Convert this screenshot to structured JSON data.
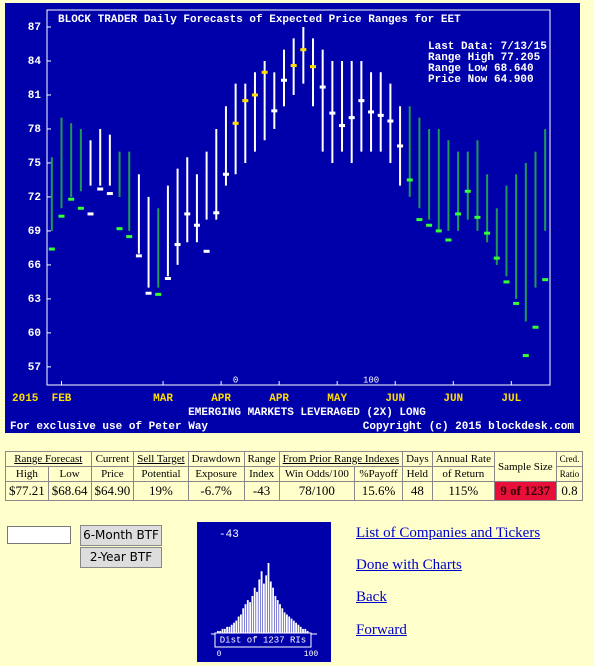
{
  "chart_data": {
    "type": "rangebar",
    "title": "BLOCK TRADER Daily Forecasts of Expected Price Ranges for  EET",
    "info": [
      "Last Data: 7/13/15",
      "Range High  77.205",
      "Range Low   68.640",
      "Price Now   64.900"
    ],
    "year": "2015",
    "subtitle": "EMERGING MARKETS LEVERAGED (2X) LONG",
    "footer_left": "For exclusive use of Peter Way",
    "footer_right": "Copyright (c) 2015 blockdesk.com",
    "axis_marks": [
      {
        "value": 19,
        "label": "0"
      },
      {
        "value": 33,
        "label": "100"
      }
    ],
    "ylim": [
      55.4,
      88.5
    ],
    "yticks": [
      57,
      60,
      63,
      66,
      69,
      72,
      75,
      78,
      81,
      84,
      87
    ],
    "xlim": [
      -0.5,
      51.5
    ],
    "xticks": [
      {
        "value": 1,
        "label": "FEB"
      },
      {
        "value": 11.5,
        "label": "MAR"
      },
      {
        "value": 17.5,
        "label": "APR"
      },
      {
        "value": 23.5,
        "label": "APR"
      },
      {
        "value": 29.5,
        "label": "MAY"
      },
      {
        "value": 35.5,
        "label": "JUN"
      },
      {
        "value": 41.5,
        "label": "JUN"
      },
      {
        "value": 47.5,
        "label": "JUL"
      }
    ],
    "high": [
      75.5,
      79,
      78.5,
      78,
      77,
      78,
      77.5,
      76,
      76,
      74,
      72,
      71,
      73,
      74.5,
      75.5,
      74,
      76,
      78,
      80,
      82,
      82,
      83,
      84,
      83,
      85,
      86,
      87,
      86,
      85,
      84,
      84,
      84,
      84,
      83,
      83,
      82,
      80,
      80,
      79,
      78,
      78,
      77,
      76,
      76,
      77,
      74,
      71,
      73,
      74,
      75,
      76,
      78
    ],
    "low": [
      69,
      71,
      72,
      72.5,
      73,
      73,
      73,
      72,
      69,
      67,
      64,
      64,
      65,
      66,
      68,
      68,
      70,
      70,
      73,
      74,
      75,
      76,
      77,
      78,
      80,
      81,
      82,
      80,
      76,
      75,
      76,
      75,
      76,
      76,
      76,
      75,
      73,
      72,
      71,
      70,
      69,
      69,
      69,
      70,
      69,
      68,
      66,
      65,
      63,
      61,
      64,
      69
    ],
    "price": [
      67.4,
      70.3,
      71.8,
      71,
      70.5,
      72.7,
      72.3,
      69.2,
      68.5,
      66.8,
      63.5,
      63.4,
      64.8,
      67.8,
      70.5,
      69.5,
      67.2,
      70.6,
      74,
      78.5,
      80.5,
      81,
      83,
      79.6,
      82.3,
      83.6,
      85,
      83.5,
      81.7,
      79.4,
      78.3,
      79,
      80.5,
      79.5,
      79.2,
      78.7,
      76.5,
      73.5,
      70,
      69.5,
      69,
      68.2,
      70.5,
      72.5,
      70.2,
      68.8,
      66.6,
      64.5,
      62.6,
      58,
      60.5,
      64.7
    ],
    "bar_colors": [
      "#1f9a55",
      "#1f9a55",
      "#1f9a55",
      "#1f9a55",
      "#ffffff",
      "#ffffff",
      "#ffffff",
      "#1f9a55",
      "#1f9a55",
      "#ffffff",
      "#ffffff",
      "#1f9a55",
      "#ffffff",
      "#ffffff",
      "#ffffff",
      "#ffffff",
      "#ffffff",
      "#ffffff",
      "#ffffff",
      "#ffffff",
      "#ffffff",
      "#ffffff",
      "#ffffff",
      "#ffffff",
      "#ffffff",
      "#ffffff",
      "#ffffff",
      "#ffffff",
      "#ffffff",
      "#ffffff",
      "#ffffff",
      "#ffffff",
      "#ffffff",
      "#ffffff",
      "#ffffff",
      "#ffffff",
      "#ffffff",
      "#1f9a55",
      "#1f9a55",
      "#1f9a55",
      "#1f9a55",
      "#1f9a55",
      "#1f9a55",
      "#1f9a55",
      "#1f9a55",
      "#1f9a55",
      "#1f9a55",
      "#1f9a55",
      "#1f9a55",
      "#1f9a55",
      "#1f9a55",
      "#1f9a55"
    ],
    "marker_colors": [
      "#33ff33",
      "#33ff33",
      "#33ff33",
      "#33ff33",
      "#ffffff",
      "#ffffff",
      "#ffffff",
      "#33ff33",
      "#33ff33",
      "#ffffff",
      "#ffffff",
      "#33ff33",
      "#ffffff",
      "#ffffff",
      "#ffffff",
      "#ffffff",
      "#ffffff",
      "#ffffff",
      "#ffffff",
      "#ffdd00",
      "#ffdd00",
      "#ffdd00",
      "#ffdd00",
      "#ffffff",
      "#ffffff",
      "#ffdd00",
      "#ffdd00",
      "#ffdd00",
      "#ffffff",
      "#ffffff",
      "#ffffff",
      "#ffffff",
      "#ffffff",
      "#ffffff",
      "#ffffff",
      "#ffffff",
      "#ffffff",
      "#33ff33",
      "#33ff33",
      "#33ff33",
      "#33ff33",
      "#33ff33",
      "#33ff33",
      "#33ff33",
      "#33ff33",
      "#33ff33",
      "#33ff33",
      "#33ff33",
      "#33ff33",
      "#33ff33",
      "#33ff33",
      "#33ff33"
    ]
  },
  "table": {
    "head1": [
      "Range Forecast",
      "Current",
      "Sell Target",
      "Drawdown",
      "Range",
      "From Prior Range Indexes",
      "Days",
      "Annual Rate",
      "Sample Size",
      "Cred."
    ],
    "head2": [
      "High",
      "Low",
      "Price",
      "Potential",
      "Exposure",
      "Index",
      "Win Odds/100",
      "%Payoff",
      "Held",
      "of Return",
      "Ratio"
    ],
    "values": [
      "$77.21",
      "$68.64",
      "$64.90",
      "19%",
      "-6.7%",
      "-43",
      "78/100",
      "15.6%",
      "48",
      "115%",
      "9 of 1237",
      "0.8"
    ]
  },
  "buttons": [
    "6-Month BTF",
    "2-Year BTF"
  ],
  "histogram": {
    "label": "-43",
    "caption": "Dist of 1237 RIs",
    "xticks": [
      "0",
      "100"
    ],
    "counts": [
      1,
      1,
      2,
      2,
      3,
      3,
      4,
      5,
      6,
      8,
      9,
      12,
      14,
      16,
      15,
      18,
      22,
      20,
      26,
      30,
      24,
      28,
      34,
      25,
      22,
      18,
      16,
      14,
      12,
      10,
      9,
      8,
      7,
      6,
      5,
      4,
      3,
      2,
      2,
      1
    ]
  },
  "links": [
    "List of Companies and Tickers",
    "Done with Charts",
    "Back",
    "Forward"
  ]
}
